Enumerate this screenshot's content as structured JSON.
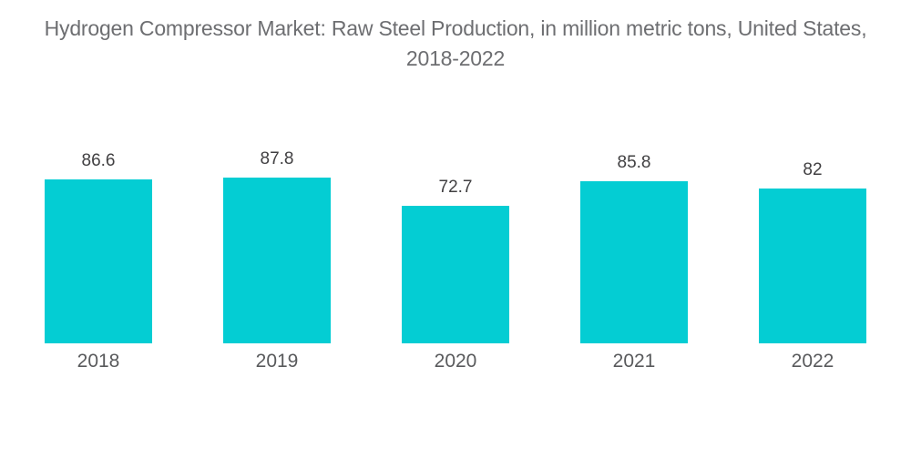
{
  "title": {
    "lines": [
      "Hydrogen Compressor Market: Raw Steel Production, in million metric tons, United States,",
      "2018-2022"
    ]
  },
  "chart_data": {
    "type": "bar",
    "title": "Hydrogen Compressor Market: Raw Steel Production, in million metric tons, United States, 2018-2022",
    "categories": [
      "2018",
      "2019",
      "2020",
      "2021",
      "2022"
    ],
    "values": [
      86.6,
      87.8,
      72.7,
      85.8,
      82
    ],
    "value_labels": [
      "86.6",
      "87.8",
      "72.7",
      "85.8",
      "82"
    ],
    "xlabel": "",
    "ylabel": "",
    "ylim": [
      0,
      88
    ],
    "grid": false,
    "legend": false,
    "bar_color": "#04CDD3",
    "title_color": "#6D6E71",
    "value_label_color": "#414042",
    "category_label_color": "#595A5C",
    "background_color": "#FFFFFF"
  }
}
